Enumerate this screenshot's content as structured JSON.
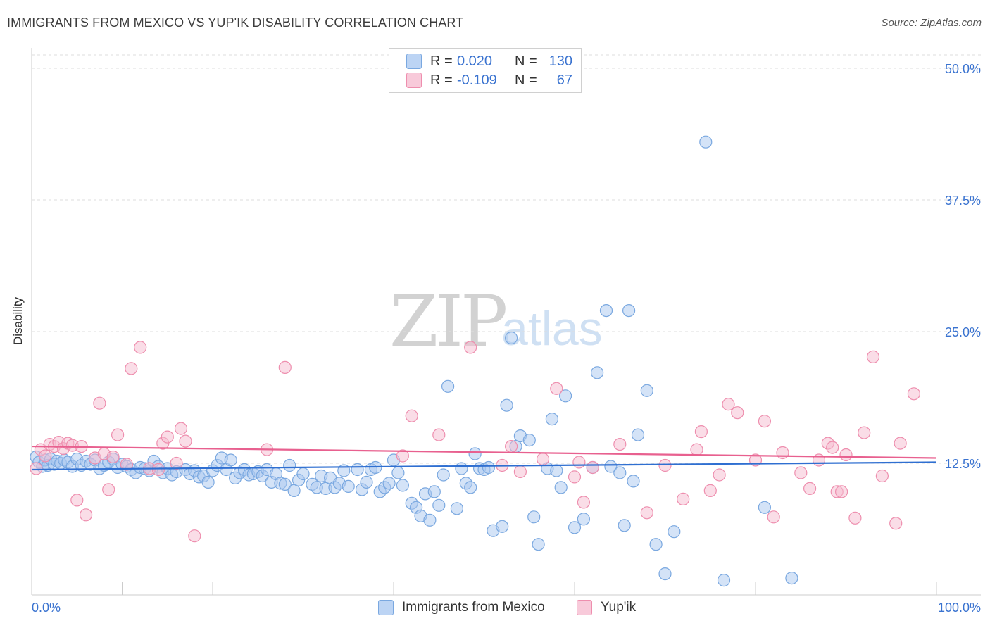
{
  "header": {
    "title": "IMMIGRANTS FROM MEXICO VS YUP'IK DISABILITY CORRELATION CHART",
    "source": "Source: ZipAtlas.com"
  },
  "watermark": {
    "zip": "ZIP",
    "atlas": "atlas"
  },
  "legend": {
    "rows": [
      {
        "r_label": "R =",
        "r_value": "0.020",
        "n_label": "N =",
        "n_value": "130"
      },
      {
        "r_label": "R =",
        "r_value": "-0.109",
        "n_label": "N =",
        "n_value": "67"
      }
    ]
  },
  "bottom_legend": {
    "series1": "Immigrants from Mexico",
    "series2": "Yup'ik"
  },
  "colors": {
    "blue_fill": "#a9c8f0",
    "blue_stroke": "#7aa8e0",
    "blue_line": "#2f6fd1",
    "pink_fill": "#f6bcd0",
    "pink_stroke": "#ee8eae",
    "pink_line": "#e8608f",
    "tick_text": "#3a73d0",
    "grid": "#dddddd"
  },
  "chart_data": {
    "type": "scatter",
    "title": "IMMIGRANTS FROM MEXICO VS YUP'IK DISABILITY CORRELATION CHART",
    "xlabel": "",
    "ylabel": "Disability",
    "xlim": [
      0,
      100
    ],
    "ylim": [
      0,
      50
    ],
    "x_tick_labels": [
      "0.0%",
      "100.0%"
    ],
    "y_ticks": [
      12.5,
      25.0,
      37.5,
      50.0
    ],
    "y_tick_labels": [
      "12.5%",
      "25.0%",
      "37.5%",
      "50.0%"
    ],
    "series": [
      {
        "name": "Immigrants from Mexico",
        "color": "blue",
        "trend": {
          "x0": 0,
          "y0": 11.9,
          "x1": 100,
          "y1": 12.6
        },
        "points": [
          [
            0.5,
            13.1
          ],
          [
            0.8,
            12.6
          ],
          [
            1.2,
            12.2
          ],
          [
            1.5,
            12.8
          ],
          [
            1.8,
            12.3
          ],
          [
            2.1,
            12.9
          ],
          [
            2.5,
            12.4
          ],
          [
            2.8,
            12.7
          ],
          [
            3.2,
            12.5
          ],
          [
            3.6,
            12.8
          ],
          [
            4.0,
            12.6
          ],
          [
            4.5,
            12.2
          ],
          [
            5.0,
            12.9
          ],
          [
            5.5,
            12.3
          ],
          [
            6.0,
            12.7
          ],
          [
            6.5,
            12.4
          ],
          [
            7.0,
            12.8
          ],
          [
            7.5,
            12.0
          ],
          [
            8.0,
            12.3
          ],
          [
            8.5,
            12.6
          ],
          [
            9.0,
            12.9
          ],
          [
            9.5,
            12.1
          ],
          [
            10.0,
            12.4
          ],
          [
            10.5,
            12.2
          ],
          [
            11.0,
            11.9
          ],
          [
            11.5,
            11.6
          ],
          [
            12.0,
            12.1
          ],
          [
            12.5,
            12.0
          ],
          [
            13.0,
            11.8
          ],
          [
            13.5,
            12.7
          ],
          [
            14.0,
            12.2
          ],
          [
            14.5,
            11.6
          ],
          [
            15.0,
            12.0
          ],
          [
            15.5,
            11.4
          ],
          [
            16.0,
            11.7
          ],
          [
            17.0,
            11.9
          ],
          [
            17.5,
            11.5
          ],
          [
            18.0,
            11.8
          ],
          [
            18.5,
            11.2
          ],
          [
            19.0,
            11.3
          ],
          [
            19.5,
            10.7
          ],
          [
            20.0,
            11.8
          ],
          [
            20.5,
            12.3
          ],
          [
            21.0,
            13.0
          ],
          [
            21.5,
            11.9
          ],
          [
            22.0,
            12.8
          ],
          [
            22.5,
            11.1
          ],
          [
            23.0,
            11.6
          ],
          [
            23.5,
            11.9
          ],
          [
            24.0,
            11.4
          ],
          [
            24.5,
            11.5
          ],
          [
            25.0,
            11.7
          ],
          [
            25.5,
            11.3
          ],
          [
            26.0,
            11.9
          ],
          [
            26.5,
            10.7
          ],
          [
            27.0,
            11.5
          ],
          [
            27.5,
            10.6
          ],
          [
            28.0,
            10.5
          ],
          [
            28.5,
            12.3
          ],
          [
            29.0,
            9.9
          ],
          [
            29.5,
            10.9
          ],
          [
            30.0,
            11.5
          ],
          [
            31.0,
            10.5
          ],
          [
            31.5,
            10.2
          ],
          [
            32.0,
            11.3
          ],
          [
            32.5,
            10.1
          ],
          [
            33.0,
            11.1
          ],
          [
            33.5,
            10.2
          ],
          [
            34.0,
            10.6
          ],
          [
            34.5,
            11.8
          ],
          [
            35.0,
            10.3
          ],
          [
            36.0,
            11.9
          ],
          [
            36.5,
            10.0
          ],
          [
            37.0,
            10.7
          ],
          [
            37.5,
            11.9
          ],
          [
            38.0,
            12.1
          ],
          [
            38.5,
            9.8
          ],
          [
            39.0,
            10.2
          ],
          [
            39.5,
            10.6
          ],
          [
            40.0,
            12.8
          ],
          [
            40.5,
            11.6
          ],
          [
            41.0,
            10.4
          ],
          [
            42.0,
            8.7
          ],
          [
            42.5,
            8.3
          ],
          [
            43.0,
            7.5
          ],
          [
            43.5,
            9.6
          ],
          [
            44.0,
            7.1
          ],
          [
            44.5,
            9.8
          ],
          [
            45.0,
            8.5
          ],
          [
            45.5,
            11.4
          ],
          [
            46.0,
            19.8
          ],
          [
            47.0,
            8.2
          ],
          [
            47.5,
            12.0
          ],
          [
            48.0,
            10.6
          ],
          [
            48.5,
            10.2
          ],
          [
            49.0,
            13.4
          ],
          [
            49.5,
            12.0
          ],
          [
            50.0,
            11.9
          ],
          [
            50.5,
            12.1
          ],
          [
            51.0,
            6.1
          ],
          [
            52.0,
            6.5
          ],
          [
            52.5,
            18.0
          ],
          [
            53.0,
            24.4
          ],
          [
            53.5,
            14.1
          ],
          [
            54.0,
            15.1
          ],
          [
            55.0,
            14.7
          ],
          [
            55.5,
            7.4
          ],
          [
            56.0,
            4.8
          ],
          [
            57.0,
            12.0
          ],
          [
            57.5,
            16.7
          ],
          [
            58.0,
            11.8
          ],
          [
            58.5,
            10.2
          ],
          [
            59.0,
            18.9
          ],
          [
            60.0,
            6.4
          ],
          [
            61.0,
            7.2
          ],
          [
            62.0,
            12.1
          ],
          [
            62.5,
            21.1
          ],
          [
            63.5,
            27.0
          ],
          [
            64.0,
            12.2
          ],
          [
            65.0,
            11.6
          ],
          [
            65.5,
            6.6
          ],
          [
            66.0,
            27.0
          ],
          [
            66.5,
            10.8
          ],
          [
            67.0,
            15.2
          ],
          [
            68.0,
            19.4
          ],
          [
            69.0,
            4.8
          ],
          [
            70.0,
            2.0
          ],
          [
            74.5,
            43.0
          ],
          [
            76.5,
            1.4
          ],
          [
            81.0,
            8.3
          ],
          [
            84.0,
            1.6
          ],
          [
            71.0,
            6.0
          ]
        ]
      },
      {
        "name": "Yup'ik",
        "color": "pink",
        "trend": {
          "x0": 0,
          "y0": 14.1,
          "x1": 100,
          "y1": 13.0
        },
        "points": [
          [
            0.5,
            12.0
          ],
          [
            1.0,
            13.8
          ],
          [
            1.5,
            13.2
          ],
          [
            2.0,
            14.3
          ],
          [
            2.5,
            14.1
          ],
          [
            3.0,
            14.5
          ],
          [
            3.5,
            13.9
          ],
          [
            4.0,
            14.4
          ],
          [
            4.5,
            14.2
          ],
          [
            5.0,
            9.0
          ],
          [
            5.5,
            14.1
          ],
          [
            6.0,
            7.6
          ],
          [
            7.0,
            13.0
          ],
          [
            7.5,
            18.2
          ],
          [
            8.0,
            13.4
          ],
          [
            8.5,
            10.0
          ],
          [
            9.0,
            13.1
          ],
          [
            9.5,
            15.2
          ],
          [
            10.5,
            12.4
          ],
          [
            11.0,
            21.5
          ],
          [
            12.0,
            23.5
          ],
          [
            13.0,
            12.0
          ],
          [
            14.0,
            11.9
          ],
          [
            14.5,
            14.4
          ],
          [
            15.0,
            15.0
          ],
          [
            16.0,
            12.5
          ],
          [
            16.5,
            15.8
          ],
          [
            17.0,
            14.6
          ],
          [
            18.0,
            5.6
          ],
          [
            26.0,
            13.8
          ],
          [
            28.0,
            21.6
          ],
          [
            41.0,
            13.2
          ],
          [
            42.0,
            17.0
          ],
          [
            45.0,
            15.2
          ],
          [
            48.5,
            23.5
          ],
          [
            52.0,
            12.3
          ],
          [
            53.0,
            14.1
          ],
          [
            54.0,
            11.7
          ],
          [
            56.5,
            12.9
          ],
          [
            58.0,
            19.6
          ],
          [
            60.0,
            11.2
          ],
          [
            60.5,
            12.6
          ],
          [
            61.0,
            8.8
          ],
          [
            62.0,
            12.1
          ],
          [
            65.0,
            14.3
          ],
          [
            68.0,
            7.8
          ],
          [
            70.0,
            12.3
          ],
          [
            72.0,
            9.1
          ],
          [
            73.5,
            13.8
          ],
          [
            74.0,
            15.5
          ],
          [
            75.0,
            9.9
          ],
          [
            76.0,
            11.4
          ],
          [
            77.0,
            18.1
          ],
          [
            78.0,
            17.3
          ],
          [
            80.0,
            12.8
          ],
          [
            81.0,
            16.5
          ],
          [
            82.0,
            7.4
          ],
          [
            83.0,
            13.5
          ],
          [
            85.0,
            11.6
          ],
          [
            86.0,
            10.1
          ],
          [
            87.0,
            12.8
          ],
          [
            88.0,
            14.4
          ],
          [
            88.5,
            14.0
          ],
          [
            89.0,
            9.8
          ],
          [
            90.0,
            13.3
          ],
          [
            92.0,
            15.4
          ],
          [
            93.0,
            22.6
          ],
          [
            94.0,
            11.3
          ],
          [
            95.5,
            6.8
          ],
          [
            96.0,
            14.4
          ],
          [
            97.5,
            19.1
          ],
          [
            91.0,
            7.3
          ],
          [
            89.5,
            9.8
          ]
        ]
      }
    ]
  }
}
